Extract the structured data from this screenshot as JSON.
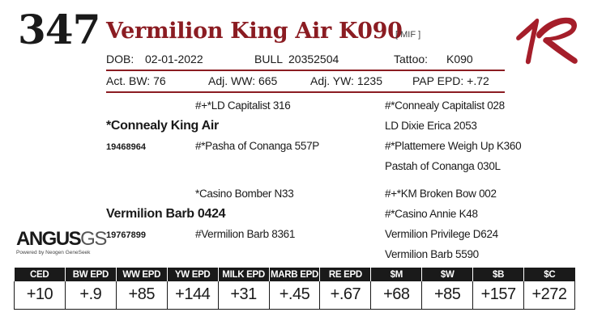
{
  "lot_number": "347",
  "animal_name": "Vermilion King Air K090",
  "designation": "[ MIF ]",
  "brand_logo_icon": "vermilion-r-icon",
  "accent_color": "#8b1c22",
  "info": {
    "dob_label": "DOB:",
    "dob_value": "02-01-2022",
    "sex": "BULL",
    "registration": "20352504",
    "tattoo_label": "Tattoo:",
    "tattoo_value": "K090",
    "actual_bw": "Act. BW: 76",
    "adj_ww": "Adj. WW: 665",
    "adj_yw": "Adj. YW: 1235",
    "pap_epd": "PAP EPD: +.72"
  },
  "pedigree": {
    "sire": "*Connealy King Air",
    "sire_reg": "19468964",
    "sire_sire": "#+*LD Capitalist 316",
    "sire_dam": "#*Pasha of Conanga 557P",
    "sire_sire_sire": "#*Connealy Capitalist 028",
    "sire_sire_dam": "LD Dixie Erica 2053",
    "sire_dam_sire": "#*Plattemere Weigh Up K360",
    "sire_dam_dam": "Pastah of Conanga 030L",
    "dam": "Vermilion Barb 0424",
    "dam_reg": "19767899",
    "dam_sire": "*Casino Bomber N33",
    "dam_dam": "#Vermilion Barb 8361",
    "dam_sire_sire": "#+*KM Broken Bow 002",
    "dam_sire_dam": "#*Casino Annie K48",
    "dam_dam_sire": "Vermilion Privilege D624",
    "dam_dam_dam": "Vermilion Barb 5590"
  },
  "angus_logo": {
    "word_main": "ANGUS",
    "word_suffix": "GS",
    "tagline": "Powered by Neogen GeneSeek"
  },
  "epd": {
    "headers": [
      "CED",
      "BW EPD",
      "WW EPD",
      "YW EPD",
      "MILK EPD",
      "MARB EPD",
      "RE EPD",
      "$M",
      "$W",
      "$B",
      "$C"
    ],
    "values": [
      "+10",
      "+.9",
      "+85",
      "+144",
      "+31",
      "+.45",
      "+.67",
      "+68",
      "+85",
      "+157",
      "+272"
    ]
  }
}
